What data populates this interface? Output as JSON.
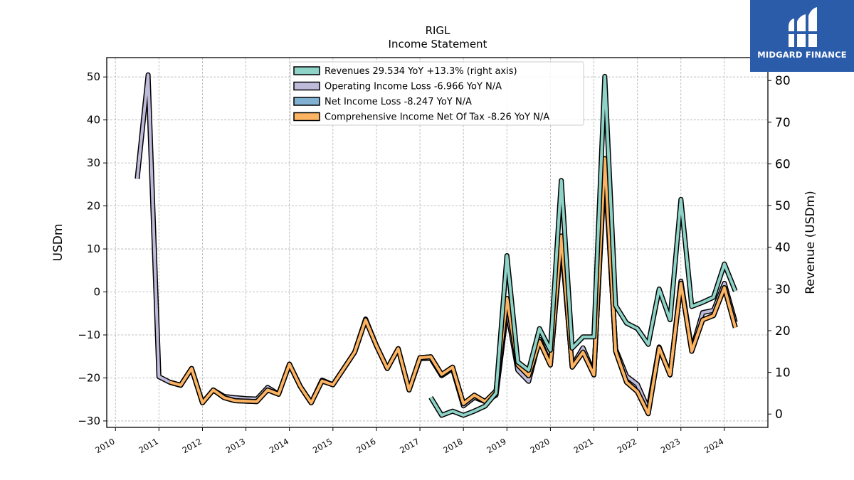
{
  "chart_data": {
    "type": "line",
    "title": "RIGL",
    "subtitle": "Income Statement",
    "ylabel_left": "USDm",
    "ylabel_right": "Revenue (USDm)",
    "ylim_left": [
      -31.5,
      54.5
    ],
    "ylim_right": [
      -3.2,
      85.5
    ],
    "yticks_left": [
      -30,
      -20,
      -10,
      0,
      10,
      20,
      30,
      40,
      50
    ],
    "yticks_right": [
      0,
      10,
      20,
      30,
      40,
      50,
      60,
      70,
      80
    ],
    "xlim": [
      2009.8,
      2025.0
    ],
    "xticks": [
      2010,
      2011,
      2012,
      2013,
      2014,
      2015,
      2016,
      2017,
      2018,
      2019,
      2020,
      2021,
      2022,
      2023,
      2024
    ],
    "grid": true,
    "legend_position": "top-center",
    "series": [
      {
        "name": "Revenues",
        "legend": "Revenues  29.534 YoY +13.3% (right axis)",
        "axis": "right",
        "color": "#8dd3c7",
        "points": [
          [
            2017.25,
            4.0
          ],
          [
            2017.5,
            -0.3
          ],
          [
            2017.75,
            0.7
          ],
          [
            2018.0,
            -0.3
          ],
          [
            2018.25,
            0.7
          ],
          [
            2018.5,
            1.9
          ],
          [
            2018.75,
            5.0
          ],
          [
            2019.0,
            38.0
          ],
          [
            2019.25,
            12.5
          ],
          [
            2019.5,
            10.5
          ],
          [
            2019.75,
            20.5
          ],
          [
            2020.0,
            15.3
          ],
          [
            2020.25,
            56.0
          ],
          [
            2020.5,
            15.8
          ],
          [
            2020.75,
            18.5
          ],
          [
            2021.0,
            18.5
          ],
          [
            2021.25,
            81.0
          ],
          [
            2021.5,
            26.0
          ],
          [
            2021.75,
            21.8
          ],
          [
            2022.0,
            20.5
          ],
          [
            2022.25,
            16.7
          ],
          [
            2022.5,
            30.0
          ],
          [
            2022.75,
            22.6
          ],
          [
            2023.0,
            51.5
          ],
          [
            2023.25,
            25.8
          ],
          [
            2023.5,
            26.8
          ],
          [
            2023.75,
            28.0
          ],
          [
            2024.0,
            36.0
          ],
          [
            2024.25,
            29.5
          ]
        ]
      },
      {
        "name": "Operating Income Loss",
        "legend": "Operating Income Loss  -6.966 YoY N/A",
        "axis": "left",
        "color": "#bebada",
        "points": [
          [
            2010.5,
            26.3
          ],
          [
            2010.75,
            50.5
          ],
          [
            2011.0,
            -19.7
          ],
          [
            2011.25,
            -21.0
          ],
          [
            2011.5,
            -21.7
          ],
          [
            2011.75,
            -17.8
          ],
          [
            2012.0,
            -25.8
          ],
          [
            2012.25,
            -22.8
          ],
          [
            2012.5,
            -24.3
          ],
          [
            2012.75,
            -24.6
          ],
          [
            2013.0,
            -24.8
          ],
          [
            2013.25,
            -24.9
          ],
          [
            2013.5,
            -22.2
          ],
          [
            2013.75,
            -23.8
          ],
          [
            2014.0,
            -16.8
          ],
          [
            2014.25,
            -22.0
          ],
          [
            2014.5,
            -25.8
          ],
          [
            2014.75,
            -20.5
          ],
          [
            2015.0,
            -21.6
          ],
          [
            2015.25,
            -17.8
          ],
          [
            2015.5,
            -14.0
          ],
          [
            2015.75,
            -6.3
          ],
          [
            2016.0,
            -12.5
          ],
          [
            2016.25,
            -17.8
          ],
          [
            2016.5,
            -13.2
          ],
          [
            2016.75,
            -22.8
          ],
          [
            2017.0,
            -15.5
          ],
          [
            2017.25,
            -15.4
          ],
          [
            2017.5,
            -19.5
          ],
          [
            2017.75,
            -17.8
          ],
          [
            2018.0,
            -26.5
          ],
          [
            2018.25,
            -24.5
          ],
          [
            2018.5,
            -25.5
          ],
          [
            2018.75,
            -24.0
          ],
          [
            2019.0,
            -4.0
          ],
          [
            2019.25,
            -18.2
          ],
          [
            2019.5,
            -20.8
          ],
          [
            2019.75,
            -11.0
          ],
          [
            2020.0,
            -16.8
          ],
          [
            2020.25,
            11.7
          ],
          [
            2020.5,
            -17.2
          ],
          [
            2020.75,
            -13.0
          ],
          [
            2021.0,
            -19.0
          ],
          [
            2021.25,
            29.0
          ],
          [
            2021.5,
            -13.3
          ],
          [
            2021.75,
            -19.6
          ],
          [
            2022.0,
            -21.5
          ],
          [
            2022.25,
            -27.2
          ],
          [
            2022.5,
            -12.8
          ],
          [
            2022.75,
            -19.3
          ],
          [
            2023.0,
            2.5
          ],
          [
            2023.25,
            -13.5
          ],
          [
            2023.5,
            -4.8
          ],
          [
            2023.75,
            -4.3
          ],
          [
            2024.0,
            2.0
          ],
          [
            2024.25,
            -7.0
          ]
        ]
      },
      {
        "name": "Net Income Loss",
        "legend": "Net Income Loss  -8.247 YoY N/A",
        "axis": "left",
        "color": "#80b1d3",
        "points": [
          [
            2011.25,
            -21.0
          ],
          [
            2011.5,
            -21.7
          ],
          [
            2011.75,
            -17.8
          ],
          [
            2012.0,
            -25.8
          ],
          [
            2012.25,
            -22.8
          ],
          [
            2012.5,
            -24.6
          ],
          [
            2012.75,
            -25.3
          ],
          [
            2013.0,
            -25.4
          ],
          [
            2013.25,
            -25.5
          ],
          [
            2013.5,
            -22.8
          ],
          [
            2013.75,
            -23.8
          ],
          [
            2014.0,
            -16.8
          ],
          [
            2014.25,
            -22.0
          ],
          [
            2014.5,
            -25.8
          ],
          [
            2014.75,
            -20.7
          ],
          [
            2015.0,
            -21.6
          ],
          [
            2015.25,
            -17.8
          ],
          [
            2015.5,
            -14.0
          ],
          [
            2015.75,
            -6.5
          ],
          [
            2016.0,
            -12.5
          ],
          [
            2016.25,
            -17.8
          ],
          [
            2016.5,
            -13.2
          ],
          [
            2016.75,
            -22.8
          ],
          [
            2017.0,
            -15.3
          ],
          [
            2017.25,
            -15.1
          ],
          [
            2017.5,
            -19.2
          ],
          [
            2017.75,
            -17.5
          ],
          [
            2018.0,
            -26.0
          ],
          [
            2018.25,
            -24.0
          ],
          [
            2018.5,
            -25.5
          ],
          [
            2018.75,
            -23.0
          ],
          [
            2019.0,
            -1.5
          ],
          [
            2019.25,
            -17.0
          ],
          [
            2019.5,
            -19.5
          ],
          [
            2019.75,
            -11.5
          ],
          [
            2020.0,
            -17.0
          ],
          [
            2020.25,
            13.0
          ],
          [
            2020.5,
            -17.5
          ],
          [
            2020.75,
            -14.0
          ],
          [
            2021.0,
            -19.3
          ],
          [
            2021.25,
            31.0
          ],
          [
            2021.5,
            -13.8
          ],
          [
            2021.75,
            -21.0
          ],
          [
            2022.0,
            -23.2
          ],
          [
            2022.25,
            -28.3
          ],
          [
            2022.5,
            -13.0
          ],
          [
            2022.75,
            -19.3
          ],
          [
            2023.0,
            2.0
          ],
          [
            2023.25,
            -13.8
          ],
          [
            2023.5,
            -6.5
          ],
          [
            2023.75,
            -5.5
          ],
          [
            2024.0,
            1.0
          ],
          [
            2024.25,
            -8.2
          ]
        ]
      },
      {
        "name": "Comprehensive Income Net Of Tax",
        "legend": "Comprehensive Income Net Of Tax  -8.26 YoY N/A",
        "axis": "left",
        "color": "#fdb462",
        "points": [
          [
            2011.25,
            -21.0
          ],
          [
            2011.5,
            -21.7
          ],
          [
            2011.75,
            -17.8
          ],
          [
            2012.0,
            -25.8
          ],
          [
            2012.25,
            -22.8
          ],
          [
            2012.5,
            -24.6
          ],
          [
            2012.75,
            -25.3
          ],
          [
            2013.0,
            -25.4
          ],
          [
            2013.25,
            -25.5
          ],
          [
            2013.5,
            -22.8
          ],
          [
            2013.75,
            -23.8
          ],
          [
            2014.0,
            -16.8
          ],
          [
            2014.25,
            -22.0
          ],
          [
            2014.5,
            -25.8
          ],
          [
            2014.75,
            -20.7
          ],
          [
            2015.0,
            -21.6
          ],
          [
            2015.25,
            -17.8
          ],
          [
            2015.5,
            -14.0
          ],
          [
            2015.75,
            -6.5
          ],
          [
            2016.0,
            -12.5
          ],
          [
            2016.25,
            -17.8
          ],
          [
            2016.5,
            -13.2
          ],
          [
            2016.75,
            -22.8
          ],
          [
            2017.0,
            -15.3
          ],
          [
            2017.25,
            -15.1
          ],
          [
            2017.5,
            -19.2
          ],
          [
            2017.75,
            -17.5
          ],
          [
            2018.0,
            -26.0
          ],
          [
            2018.25,
            -24.0
          ],
          [
            2018.5,
            -25.5
          ],
          [
            2018.75,
            -23.0
          ],
          [
            2019.0,
            -1.5
          ],
          [
            2019.25,
            -17.0
          ],
          [
            2019.5,
            -19.5
          ],
          [
            2019.75,
            -11.5
          ],
          [
            2020.0,
            -17.0
          ],
          [
            2020.25,
            13.0
          ],
          [
            2020.5,
            -17.5
          ],
          [
            2020.75,
            -14.0
          ],
          [
            2021.0,
            -19.3
          ],
          [
            2021.25,
            31.0
          ],
          [
            2021.5,
            -13.8
          ],
          [
            2021.75,
            -21.0
          ],
          [
            2022.0,
            -23.2
          ],
          [
            2022.25,
            -28.3
          ],
          [
            2022.5,
            -13.0
          ],
          [
            2022.75,
            -19.3
          ],
          [
            2023.0,
            2.0
          ],
          [
            2023.25,
            -13.8
          ],
          [
            2023.5,
            -6.5
          ],
          [
            2023.75,
            -5.5
          ],
          [
            2024.0,
            1.0
          ],
          [
            2024.25,
            -8.3
          ]
        ]
      }
    ]
  },
  "logo": {
    "text": "MIDGARD FINANCE",
    "background": "#2a5caa"
  }
}
